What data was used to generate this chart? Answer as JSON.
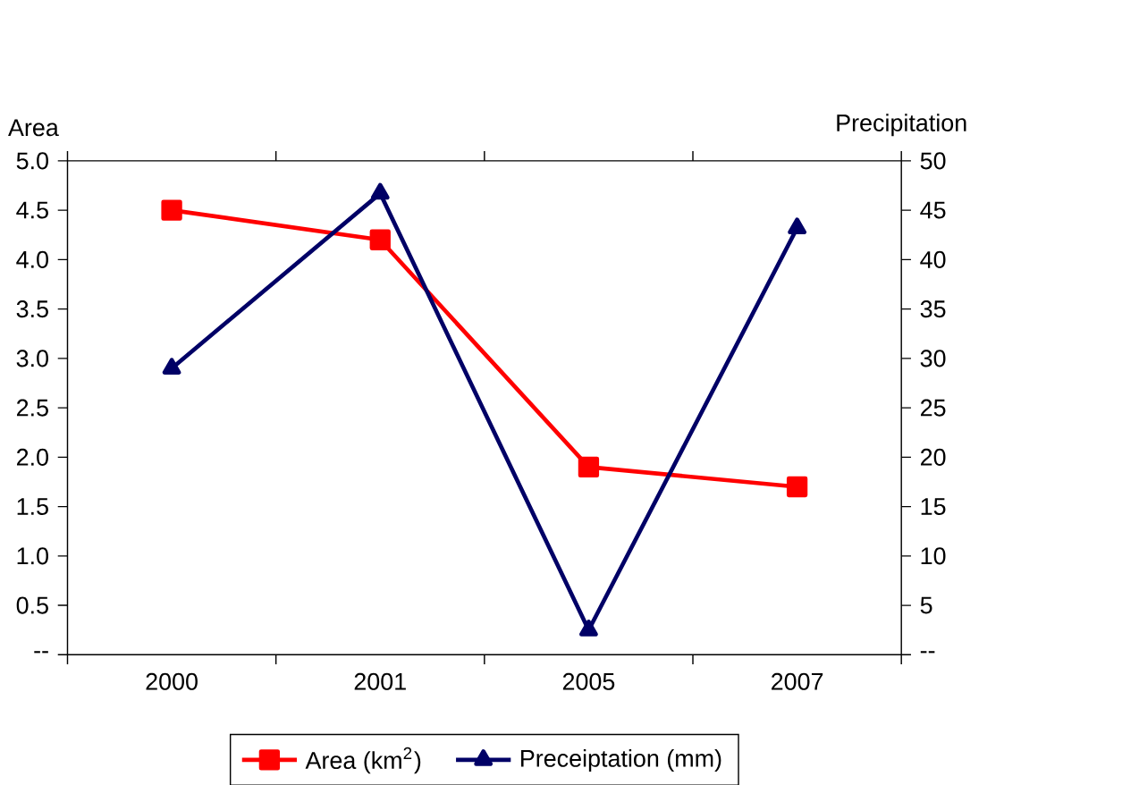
{
  "chart_data": {
    "type": "line",
    "categories": [
      "2000",
      "2001",
      "2005",
      "2007"
    ],
    "ylabel": "Area",
    "y2label": "Precipitation",
    "ylim": [
      0,
      5
    ],
    "yticks": [
      {
        "value": 0,
        "label": "--"
      },
      {
        "value": 0.5,
        "label": "0.5"
      },
      {
        "value": 1,
        "label": "1.0"
      },
      {
        "value": 1.5,
        "label": "1.5"
      },
      {
        "value": 2,
        "label": "2.0"
      },
      {
        "value": 2.5,
        "label": "2.5"
      },
      {
        "value": 3,
        "label": "3.0"
      },
      {
        "value": 3.5,
        "label": "3.5"
      },
      {
        "value": 4,
        "label": "4.0"
      },
      {
        "value": 4.5,
        "label": "4.5"
      },
      {
        "value": 5,
        "label": "5.0"
      }
    ],
    "y2lim": [
      0,
      50
    ],
    "y2ticks": [
      {
        "value": 0,
        "label": "--"
      },
      5,
      10,
      15,
      20,
      25,
      30,
      35,
      40,
      45,
      50
    ],
    "series": [
      {
        "name": "Area (km$^{2}$)",
        "color": "#ff0000",
        "marker": "square",
        "values": [
          4.5,
          4.2,
          1.9,
          1.7
        ]
      },
      {
        "name": "Preceiptation (mm)",
        "color": "#000066",
        "marker": "triangle",
        "axis": "y2",
        "values": [
          29,
          46.7,
          2.5,
          43.2
        ]
      }
    ],
    "legend": "bottom",
    "grid": false
  }
}
